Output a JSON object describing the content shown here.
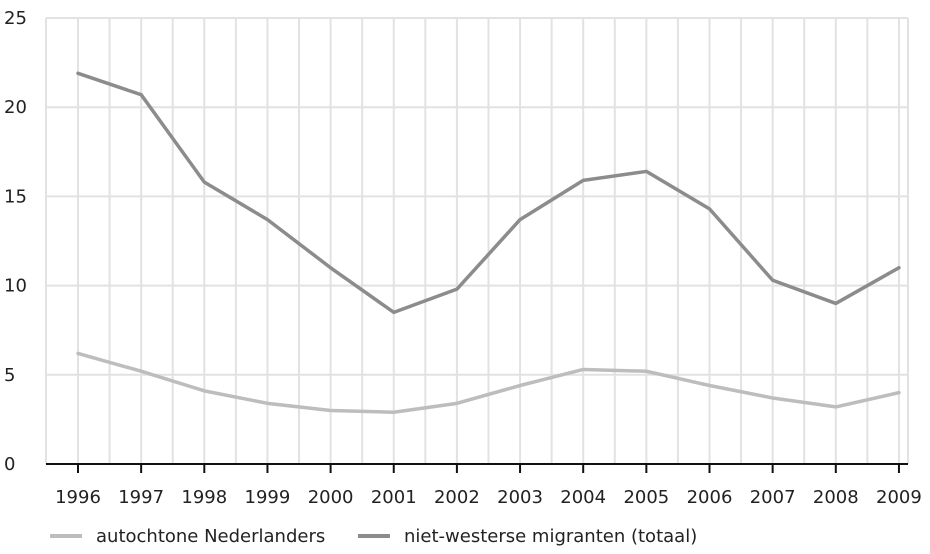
{
  "chart_data": {
    "type": "line",
    "title": "",
    "xlabel": "",
    "ylabel": "",
    "categories": [
      "1996",
      "1997",
      "1998",
      "1999",
      "2000",
      "2001",
      "2002",
      "2003",
      "2004",
      "2005",
      "2006",
      "2007",
      "2008",
      "2009"
    ],
    "ylim": [
      0,
      25
    ],
    "yticks": [
      0,
      5,
      10,
      15,
      20,
      25
    ],
    "grid": true,
    "legend_position": "bottom",
    "series": [
      {
        "name": "autochtone Nederlanders",
        "color": "#bdbdbd",
        "values": [
          6.2,
          5.2,
          4.1,
          3.4,
          3.0,
          2.9,
          3.4,
          4.4,
          5.3,
          5.2,
          4.4,
          3.7,
          3.2,
          4.0
        ]
      },
      {
        "name": "niet-westerse migranten (totaal)",
        "color": "#8c8c8c",
        "values": [
          21.9,
          20.7,
          15.8,
          13.7,
          11.0,
          8.5,
          9.8,
          13.7,
          15.9,
          16.4,
          14.3,
          10.3,
          9.0,
          11.0
        ]
      }
    ]
  }
}
